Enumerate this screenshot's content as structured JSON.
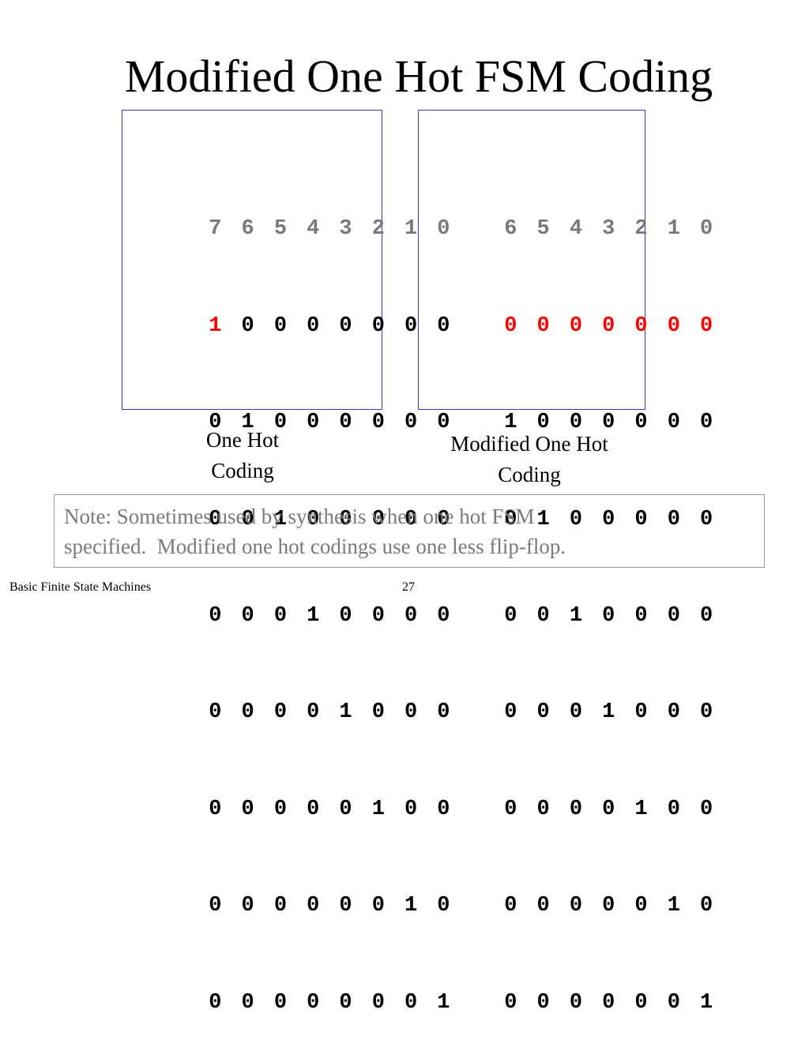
{
  "slide": {
    "title": "Modified One Hot FSM Coding",
    "footer_text": "Basic Finite State Machines",
    "page_number": "27"
  },
  "one_hot": {
    "header": [
      "7",
      "6",
      "5",
      "4",
      "3",
      "2",
      "1",
      "0"
    ],
    "rows": [
      [
        "1",
        "0",
        "0",
        "0",
        "0",
        "0",
        "0",
        "0"
      ],
      [
        "0",
        "1",
        "0",
        "0",
        "0",
        "0",
        "0",
        "0"
      ],
      [
        "0",
        "0",
        "1",
        "0",
        "0",
        "0",
        "0",
        "0"
      ],
      [
        "0",
        "0",
        "0",
        "1",
        "0",
        "0",
        "0",
        "0"
      ],
      [
        "0",
        "0",
        "0",
        "0",
        "1",
        "0",
        "0",
        "0"
      ],
      [
        "0",
        "0",
        "0",
        "0",
        "0",
        "1",
        "0",
        "0"
      ],
      [
        "0",
        "0",
        "0",
        "0",
        "0",
        "0",
        "1",
        "0"
      ],
      [
        "0",
        "0",
        "0",
        "0",
        "0",
        "0",
        "0",
        "1"
      ]
    ],
    "caption_line1": "One Hot",
    "caption_line2": "Coding"
  },
  "modified_one_hot": {
    "header": [
      "6",
      "5",
      "4",
      "3",
      "2",
      "1",
      "0"
    ],
    "rows": [
      [
        "0",
        "0",
        "0",
        "0",
        "0",
        "0",
        "0"
      ],
      [
        "1",
        "0",
        "0",
        "0",
        "0",
        "0",
        "0"
      ],
      [
        "0",
        "1",
        "0",
        "0",
        "0",
        "0",
        "0"
      ],
      [
        "0",
        "0",
        "1",
        "0",
        "0",
        "0",
        "0"
      ],
      [
        "0",
        "0",
        "0",
        "1",
        "0",
        "0",
        "0"
      ],
      [
        "0",
        "0",
        "0",
        "0",
        "1",
        "0",
        "0"
      ],
      [
        "0",
        "0",
        "0",
        "0",
        "0",
        "1",
        "0"
      ],
      [
        "0",
        "0",
        "0",
        "0",
        "0",
        "0",
        "1"
      ]
    ],
    "caption_line1": "Modified One Hot",
    "caption_line2": "Coding"
  },
  "note": {
    "line1": "Note: Sometimes used by synthesis when one hot FSM",
    "line2": "specified.  Modified one hot codings use one less flip-flop."
  },
  "colors": {
    "highlight": "#ff0000",
    "header_gray": "#7a7a7a",
    "table_border": "#3a3aa8",
    "note_border": "#9a9a9a"
  }
}
